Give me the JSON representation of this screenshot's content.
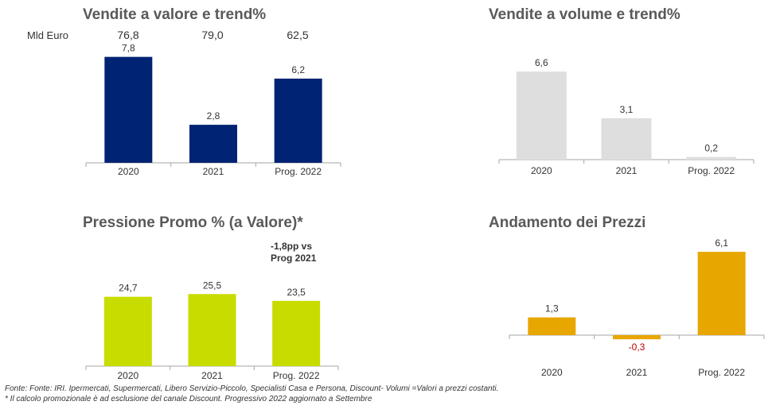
{
  "chart_data": [
    {
      "type": "bar",
      "title": "Vendite a valore e trend%",
      "unit_label": "Mld  Euro",
      "totals": [
        "76,8",
        "79,0",
        "62,5"
      ],
      "categories": [
        "2020",
        "2021",
        "Prog. 2022"
      ],
      "values": [
        7.8,
        2.8,
        6.2
      ],
      "labels": [
        "7,8",
        "2,8",
        "6,2"
      ],
      "color": "#002373"
    },
    {
      "type": "bar",
      "title": "Vendite a volume e trend%",
      "categories": [
        "2020",
        "2021",
        "Prog. 2022"
      ],
      "values": [
        6.6,
        3.1,
        0.2
      ],
      "labels": [
        "6,6",
        "3,1",
        "0,2"
      ],
      "color": "#dedede"
    },
    {
      "type": "bar",
      "title": "Pressione Promo % (a Valore)*",
      "note": "-1,8pp vs\nProg 2021",
      "categories": [
        "2020",
        "2021",
        "Prog. 2022"
      ],
      "values": [
        24.7,
        25.5,
        23.5
      ],
      "labels": [
        "24,7",
        "25,5",
        "23,5"
      ],
      "color": "#c8dc00"
    },
    {
      "type": "bar",
      "title": "Andamento dei Prezzi",
      "categories": [
        "2020",
        "2021",
        "Prog. 2022"
      ],
      "values": [
        1.3,
        -0.3,
        6.1
      ],
      "labels": [
        "1,3",
        "-0,3",
        "6,1"
      ],
      "color": "#e8a600",
      "negative_label_color": "#c00000"
    }
  ],
  "footer": {
    "line1": "Fonte: Fonte: IRI. Ipermercati, Supermercati, Libero Servizio-Piccolo, Specialisti Casa e Persona, Discount-  Volumi =Valori a prezzi costanti.",
    "line2": "* Il calcolo promozionale è ad esclusione del canale Discount. Progressivo 2022 aggiornato a Settembre"
  }
}
